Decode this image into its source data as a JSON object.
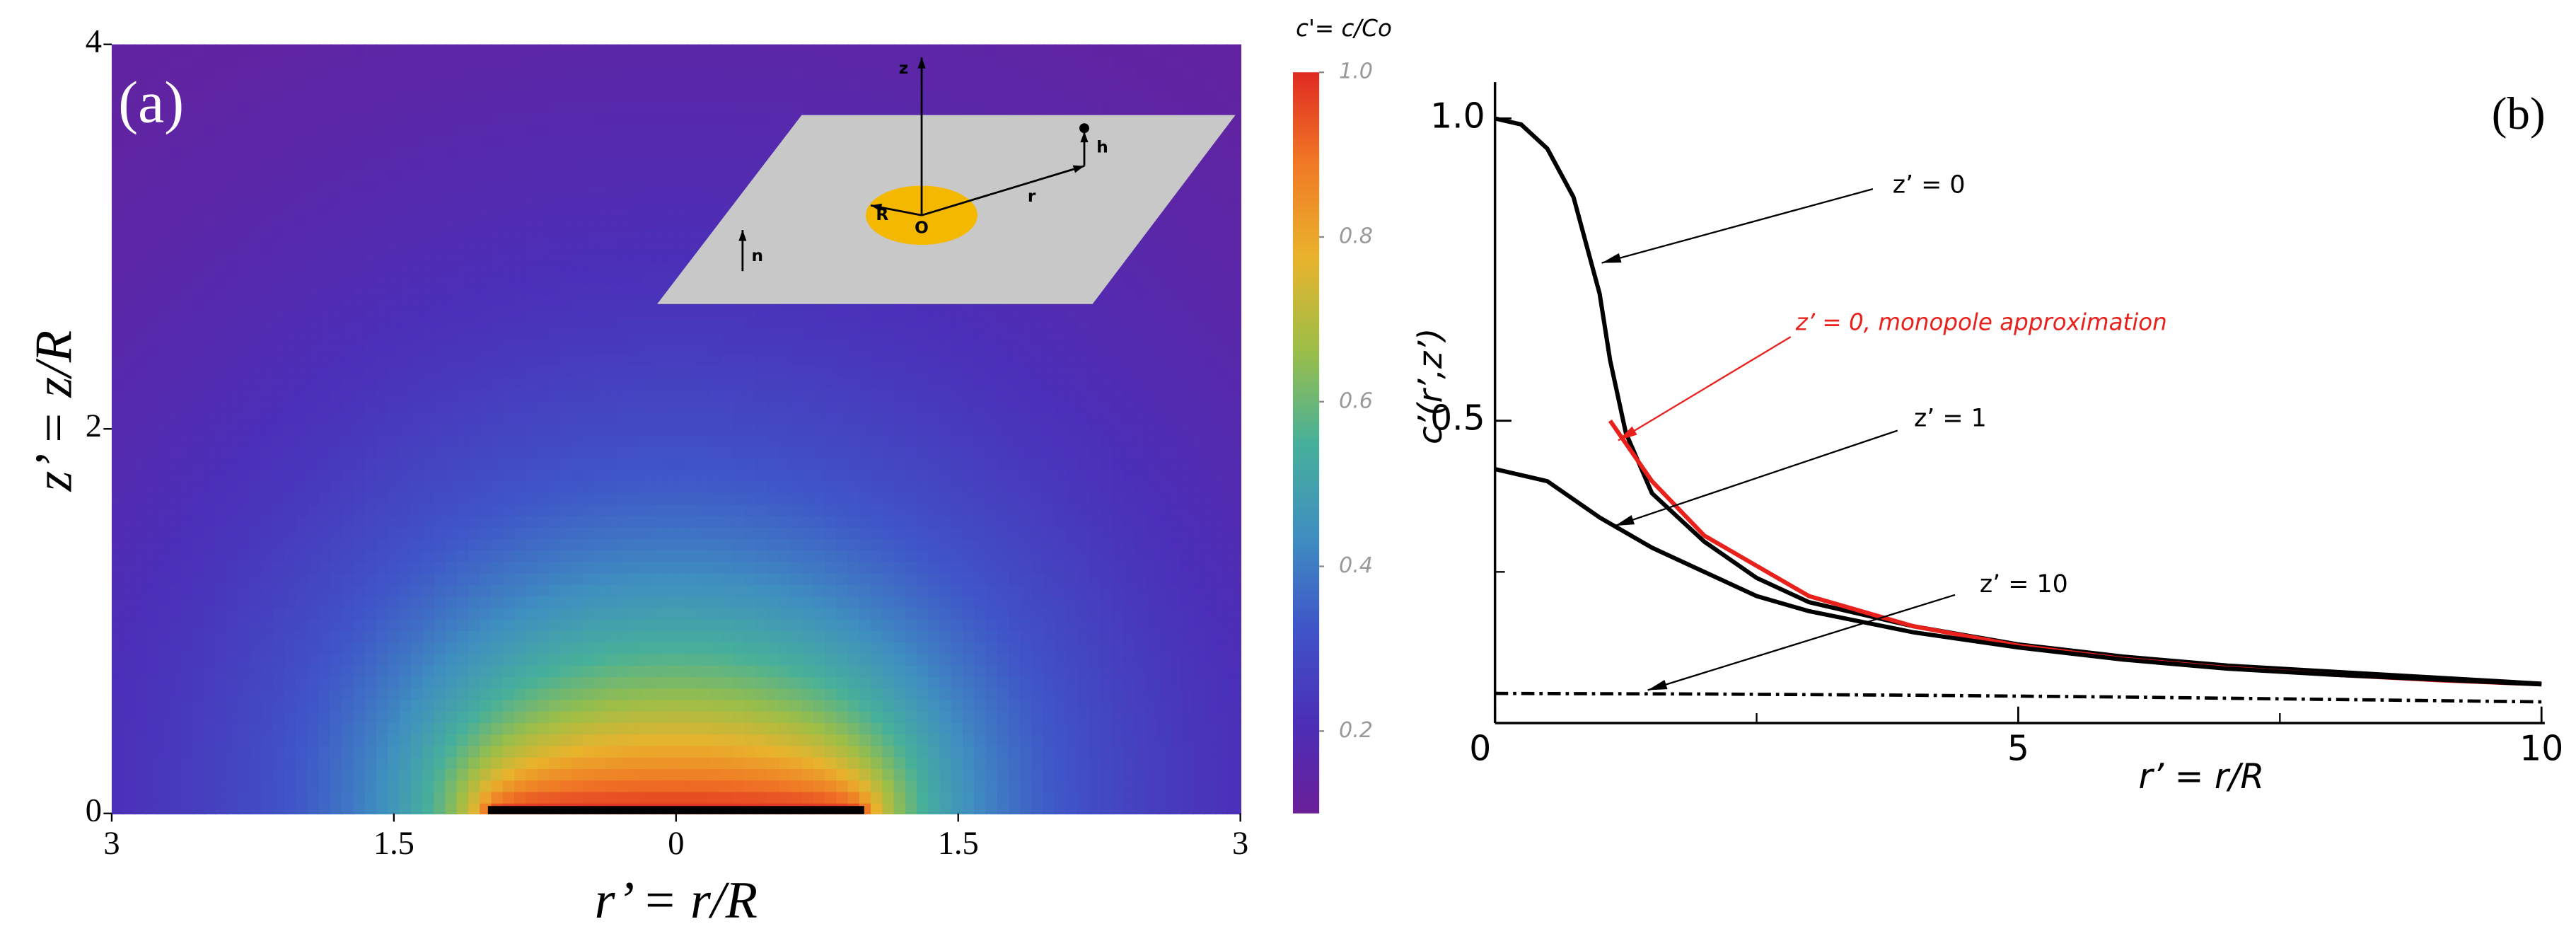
{
  "chart_data": [
    {
      "type": "heatmap",
      "title": "(a)",
      "xlabel": "r’ = r/R",
      "ylabel": "z’ = z/R",
      "xlim": [
        -3,
        3
      ],
      "ylim": [
        0,
        4
      ],
      "xticks": [
        {
          "value": -3,
          "label": "3"
        },
        {
          "value": -1.5,
          "label": "1.5"
        },
        0,
        1.5,
        3
      ],
      "yticks": [
        0,
        2,
        4
      ],
      "disk": [
        -1,
        1
      ],
      "colorbar_label": "c'= c/Co",
      "clim": [
        0.1,
        1.0
      ],
      "cticks": [
        0.2,
        0.4,
        0.6,
        0.8,
        {
          "value": 1.0,
          "label": "1.0"
        }
      ],
      "colormap": [
        "#6a1f98",
        "#4b2fb8",
        "#3f55c8",
        "#3f8fc0",
        "#47b09a",
        "#9cbe48",
        "#e9b32c",
        "#f07a25",
        "#e02a22"
      ],
      "inset_labels": [
        "z",
        "r",
        "h",
        "R",
        "O",
        "n"
      ]
    },
    {
      "type": "line",
      "title": "(b)",
      "xlabel": "r’ = r/R",
      "ylabel": "c’(r’,z’)",
      "xlim": [
        0,
        10
      ],
      "ylim": [
        0,
        1.06
      ],
      "xticks": [
        0,
        5,
        10
      ],
      "x_minor_ticks": [
        2.5,
        7.5
      ],
      "yticks": [
        0.5,
        {
          "value": 1.0,
          "label": "1.0"
        }
      ],
      "y_minor_ticks": [
        0.25
      ],
      "series": [
        {
          "name": "z’ = 0",
          "color": "#000000",
          "linestyle": "solid",
          "x": [
            0,
            0.25,
            0.5,
            0.75,
            1.0,
            1.1,
            1.25,
            1.5,
            2,
            2.5,
            3,
            4,
            5,
            6,
            7,
            8,
            9,
            10
          ],
          "values": [
            1.0,
            0.99,
            0.95,
            0.87,
            0.71,
            0.6,
            0.48,
            0.38,
            0.3,
            0.24,
            0.2,
            0.16,
            0.13,
            0.11,
            0.095,
            0.085,
            0.075,
            0.065
          ]
        },
        {
          "name": "z’ = 0, monopole approximation",
          "color": "#e8211c",
          "linestyle": "solid",
          "x": [
            1.1,
            1.5,
            2,
            3,
            4,
            5,
            6,
            7,
            8,
            9,
            10
          ],
          "values": [
            0.5,
            0.4,
            0.31,
            0.21,
            0.16,
            0.128,
            0.106,
            0.091,
            0.08,
            0.071,
            0.064
          ]
        },
        {
          "name": "z’ = 1",
          "color": "#000000",
          "linestyle": "solid",
          "x": [
            0,
            0.5,
            1,
            1.5,
            2,
            2.5,
            3,
            4,
            5,
            6,
            7,
            8,
            9,
            10
          ],
          "values": [
            0.42,
            0.4,
            0.34,
            0.29,
            0.25,
            0.21,
            0.185,
            0.15,
            0.125,
            0.105,
            0.09,
            0.08,
            0.072,
            0.064
          ]
        },
        {
          "name": "z’ = 10",
          "color": "#000000",
          "linestyle": "dashed",
          "x": [
            0,
            2,
            4,
            6,
            8,
            10
          ],
          "values": [
            0.049,
            0.048,
            0.046,
            0.043,
            0.039,
            0.035
          ]
        }
      ]
    }
  ]
}
